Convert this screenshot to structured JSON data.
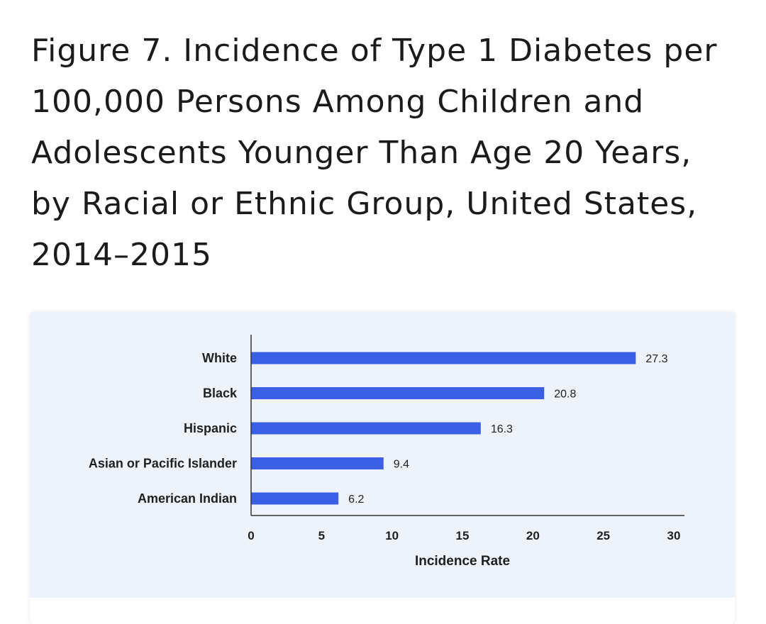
{
  "title": "Figure 7. Incidence of Type 1 Diabetes per 100,000 Persons Among Children and Adolescents Younger Than Age 20 Years, by Racial or Ethnic Group, United States, 2014–2015",
  "colors": {
    "bar": "#3b5ee6",
    "card_background": "#eef2fb",
    "axis": "#333333"
  },
  "chart_data": {
    "type": "bar",
    "orientation": "horizontal",
    "title": "Figure 7. Incidence of Type 1 Diabetes per 100,000 Persons Among Children and Adolescents Younger Than Age 20 Years, by Racial or Ethnic Group, United States, 2014–2015",
    "categories": [
      "White",
      "Black",
      "Hispanic",
      "Asian or Pacific Islander",
      "American Indian"
    ],
    "values": [
      27.3,
      20.8,
      16.3,
      9.4,
      6.2
    ],
    "value_labels": [
      "27.3",
      "20.8",
      "16.3",
      "9.4",
      "6.2"
    ],
    "xlabel": "Incidence Rate",
    "ylabel": "",
    "xlim": [
      0,
      30
    ],
    "xticks": [
      0,
      5,
      10,
      15,
      20,
      25,
      30
    ],
    "grid": false,
    "legend": null
  }
}
